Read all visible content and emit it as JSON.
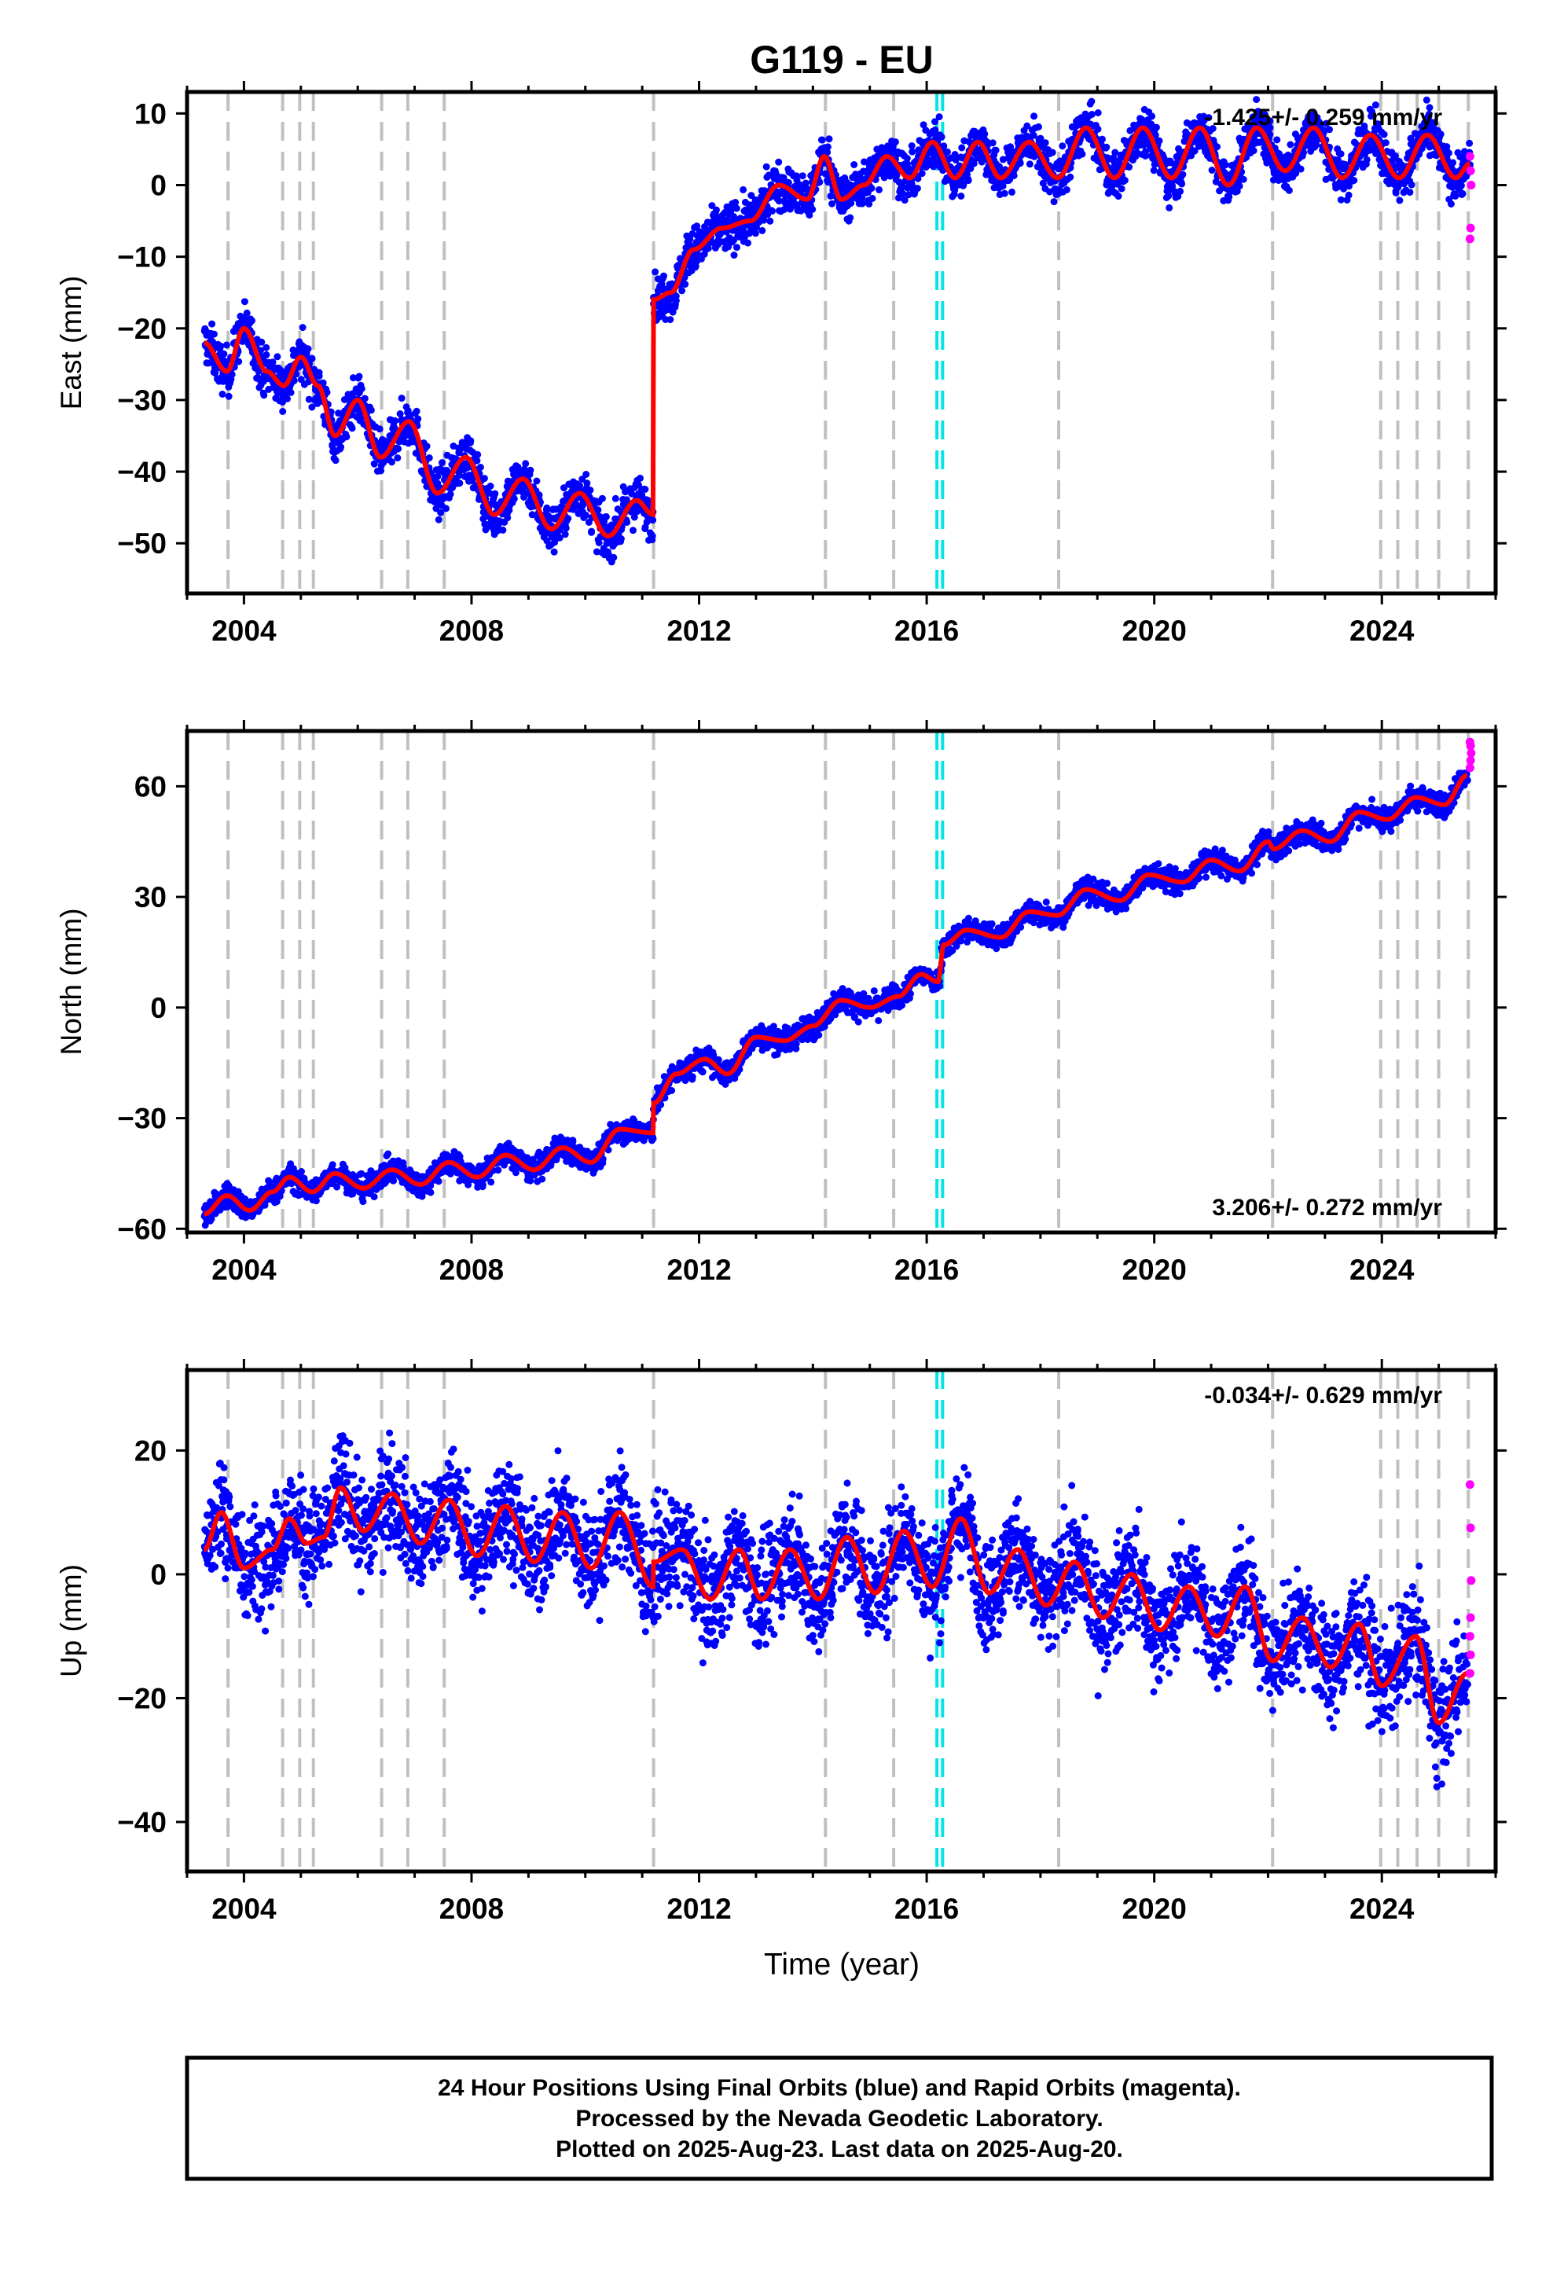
{
  "chart_data": {
    "title": "G119 - EU",
    "type": "scatter",
    "xlabel": "Time (year)",
    "x_ticks": [
      2004,
      2008,
      2012,
      2016,
      2020,
      2024
    ],
    "xlim": [
      2003.0,
      2026.0
    ],
    "event_lines_gray": [
      2003.72,
      2004.68,
      2004.98,
      2005.22,
      2006.42,
      2006.88,
      2007.52,
      2011.2,
      2014.22,
      2015.42,
      2018.32,
      2022.08,
      2023.98,
      2024.28,
      2024.62,
      2025.0,
      2025.52
    ],
    "event_lines_cyan": [
      2016.18,
      2016.28
    ],
    "panels": [
      {
        "component": "East",
        "ylabel": "East (mm)",
        "ylim": [
          -57,
          13
        ],
        "y_ticks": [
          10,
          0,
          -10,
          -20,
          -30,
          -40,
          -50
        ],
        "rate_label": "-1.425+/- 0.259 mm/yr",
        "rate_position": "top-right",
        "model_control_points": [
          [
            2003.3,
            -22
          ],
          [
            2003.7,
            -26
          ],
          [
            2004.0,
            -20
          ],
          [
            2004.4,
            -26
          ],
          [
            2004.7,
            -28
          ],
          [
            2005.0,
            -24
          ],
          [
            2005.3,
            -28
          ],
          [
            2005.6,
            -35
          ],
          [
            2006.0,
            -30
          ],
          [
            2006.4,
            -38
          ],
          [
            2006.9,
            -33
          ],
          [
            2007.4,
            -43
          ],
          [
            2007.9,
            -38
          ],
          [
            2008.4,
            -46
          ],
          [
            2008.9,
            -41
          ],
          [
            2009.4,
            -48
          ],
          [
            2009.9,
            -43
          ],
          [
            2010.4,
            -49
          ],
          [
            2010.9,
            -44
          ],
          [
            2011.19,
            -46
          ],
          [
            2011.2,
            -16
          ],
          [
            2011.5,
            -15
          ],
          [
            2011.9,
            -9
          ],
          [
            2012.4,
            -6
          ],
          [
            2012.9,
            -5
          ],
          [
            2013.4,
            0
          ],
          [
            2013.9,
            -2
          ],
          [
            2014.2,
            4
          ],
          [
            2014.5,
            -2
          ],
          [
            2014.9,
            0
          ],
          [
            2015.3,
            4
          ],
          [
            2015.7,
            1
          ],
          [
            2016.1,
            6
          ],
          [
            2016.5,
            1
          ],
          [
            2016.9,
            6
          ],
          [
            2017.3,
            1
          ],
          [
            2017.8,
            6
          ],
          [
            2018.3,
            1
          ],
          [
            2018.8,
            8
          ],
          [
            2019.3,
            1
          ],
          [
            2019.8,
            8
          ],
          [
            2020.3,
            1
          ],
          [
            2020.8,
            8
          ],
          [
            2021.3,
            0
          ],
          [
            2021.8,
            8
          ],
          [
            2022.3,
            2
          ],
          [
            2022.8,
            8
          ],
          [
            2023.3,
            1
          ],
          [
            2023.8,
            7
          ],
          [
            2024.3,
            1
          ],
          [
            2024.8,
            7
          ],
          [
            2025.3,
            1
          ],
          [
            2025.55,
            3
          ]
        ],
        "rapid_points": [
          [
            2025.55,
            4
          ],
          [
            2025.56,
            2
          ],
          [
            2025.57,
            0
          ],
          [
            2025.56,
            -6
          ],
          [
            2025.55,
            -7.5
          ]
        ]
      },
      {
        "component": "North",
        "ylabel": "North (mm)",
        "ylim": [
          -61,
          75
        ],
        "y_ticks": [
          60,
          30,
          0,
          -30,
          -60
        ],
        "rate_label": "3.206+/- 0.272 mm/yr",
        "rate_position": "bottom-right",
        "model_control_points": [
          [
            2003.3,
            -56
          ],
          [
            2003.7,
            -51
          ],
          [
            2004.1,
            -55
          ],
          [
            2004.5,
            -50
          ],
          [
            2004.8,
            -46
          ],
          [
            2005.2,
            -50
          ],
          [
            2005.6,
            -45
          ],
          [
            2006.1,
            -49
          ],
          [
            2006.6,
            -44
          ],
          [
            2007.1,
            -48
          ],
          [
            2007.6,
            -42
          ],
          [
            2008.1,
            -46
          ],
          [
            2008.6,
            -40
          ],
          [
            2009.1,
            -44
          ],
          [
            2009.6,
            -38
          ],
          [
            2010.1,
            -42
          ],
          [
            2010.6,
            -33
          ],
          [
            2011.19,
            -34
          ],
          [
            2011.2,
            -26
          ],
          [
            2011.6,
            -18
          ],
          [
            2012.1,
            -14
          ],
          [
            2012.5,
            -18
          ],
          [
            2013.0,
            -8
          ],
          [
            2013.5,
            -9
          ],
          [
            2014.0,
            -5
          ],
          [
            2014.5,
            2
          ],
          [
            2015.0,
            0
          ],
          [
            2015.5,
            3
          ],
          [
            2015.9,
            9
          ],
          [
            2016.2,
            7
          ],
          [
            2016.3,
            17
          ],
          [
            2016.7,
            21
          ],
          [
            2017.3,
            19
          ],
          [
            2017.8,
            26
          ],
          [
            2018.3,
            25
          ],
          [
            2018.8,
            32
          ],
          [
            2019.4,
            29
          ],
          [
            2019.9,
            36
          ],
          [
            2020.5,
            34
          ],
          [
            2021.0,
            40
          ],
          [
            2021.5,
            37
          ],
          [
            2022.0,
            45
          ],
          [
            2022.1,
            43
          ],
          [
            2022.6,
            48
          ],
          [
            2023.1,
            45
          ],
          [
            2023.6,
            53
          ],
          [
            2024.1,
            51
          ],
          [
            2024.6,
            57
          ],
          [
            2025.1,
            55
          ],
          [
            2025.5,
            63
          ]
        ],
        "rapid_points": [
          [
            2025.55,
            65
          ],
          [
            2025.56,
            67
          ],
          [
            2025.57,
            69
          ],
          [
            2025.56,
            71
          ],
          [
            2025.55,
            72
          ]
        ]
      },
      {
        "component": "Up",
        "ylabel": "Up (mm)",
        "ylim": [
          -48,
          33
        ],
        "y_ticks": [
          20,
          0,
          -20,
          -40
        ],
        "rate_label": "-0.034+/- 0.629 mm/yr",
        "rate_position": "top-right",
        "model_control_points": [
          [
            2003.3,
            4
          ],
          [
            2003.6,
            10
          ],
          [
            2004.0,
            1
          ],
          [
            2004.5,
            4
          ],
          [
            2004.8,
            9
          ],
          [
            2005.1,
            5
          ],
          [
            2005.4,
            6
          ],
          [
            2005.7,
            14
          ],
          [
            2006.1,
            7
          ],
          [
            2006.6,
            13
          ],
          [
            2007.1,
            5
          ],
          [
            2007.6,
            12
          ],
          [
            2008.1,
            3
          ],
          [
            2008.6,
            11
          ],
          [
            2009.1,
            2
          ],
          [
            2009.6,
            10
          ],
          [
            2010.1,
            1
          ],
          [
            2010.6,
            10
          ],
          [
            2011.19,
            -2
          ],
          [
            2011.2,
            2
          ],
          [
            2011.7,
            4
          ],
          [
            2012.2,
            -4
          ],
          [
            2012.7,
            4
          ],
          [
            2013.1,
            -4
          ],
          [
            2013.6,
            4
          ],
          [
            2014.1,
            -4
          ],
          [
            2014.6,
            6
          ],
          [
            2015.1,
            -3
          ],
          [
            2015.6,
            7
          ],
          [
            2016.1,
            -2
          ],
          [
            2016.6,
            9
          ],
          [
            2017.1,
            -3
          ],
          [
            2017.6,
            4
          ],
          [
            2018.1,
            -5
          ],
          [
            2018.6,
            2
          ],
          [
            2019.1,
            -7
          ],
          [
            2019.6,
            0
          ],
          [
            2020.1,
            -9
          ],
          [
            2020.6,
            -2
          ],
          [
            2021.1,
            -10
          ],
          [
            2021.6,
            -2
          ],
          [
            2022.08,
            -14
          ],
          [
            2022.6,
            -7
          ],
          [
            2023.1,
            -15
          ],
          [
            2023.6,
            -8
          ],
          [
            2024.0,
            -18
          ],
          [
            2024.6,
            -10
          ],
          [
            2025.0,
            -24
          ],
          [
            2025.5,
            -16
          ]
        ],
        "rapid_points": [
          [
            2025.55,
            14.5
          ],
          [
            2025.56,
            7.5
          ],
          [
            2025.57,
            -1
          ],
          [
            2025.56,
            -7
          ],
          [
            2025.55,
            -10
          ],
          [
            2025.56,
            -13
          ],
          [
            2025.55,
            -16
          ]
        ]
      }
    ]
  },
  "caption": {
    "line1": "24 Hour Positions Using Final Orbits (blue) and Rapid Orbits (magenta).",
    "line2": "Processed by the Nevada Geodetic Laboratory.",
    "line3": "Plotted on 2025-Aug-23. Last data on 2025-Aug-20."
  },
  "colors": {
    "final_orbits": "#0000ff",
    "rapid_orbits": "#ff00ff",
    "model": "#ff0000",
    "event_gray": "#c0c0c0",
    "event_cyan": "#00e5e5"
  }
}
